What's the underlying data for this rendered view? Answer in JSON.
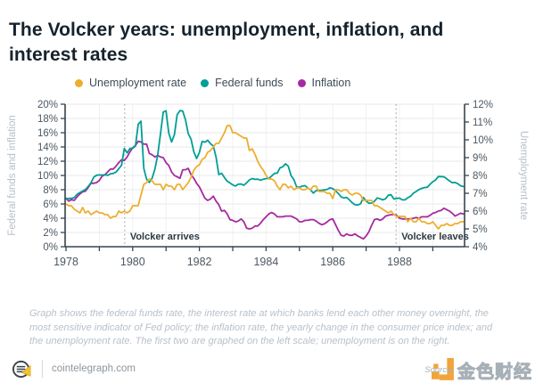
{
  "title": "The Volcker years: unemployment, inflation, and interest rates",
  "legend": [
    {
      "label": "Unemployment rate",
      "color": "#EDAE2E"
    },
    {
      "label": "Federal funds",
      "color": "#009E96"
    },
    {
      "label": "Inflation",
      "color": "#A62AA0"
    }
  ],
  "caption": "Graph shows the federal funds rate, the interest rate at which banks lend each other money overnight, the most sensitive indicator of Fed policy; the inflation rate, the yearly change in the consumer price index; and the unemployment rate. The first two are graphed on the left scale; unemployment is on the right.",
  "footer": {
    "site": "cointelegraph.com"
  },
  "watermark": {
    "source_label": "Source:",
    "brand": "金色财经"
  },
  "chart_data": {
    "type": "line",
    "x_start_year": 1978,
    "x_step_months": 1,
    "x_tick_years": [
      1978,
      1979,
      1980,
      1981,
      1982,
      1983,
      1984,
      1985,
      1986,
      1987,
      1988,
      1989
    ],
    "x_label_years": [
      1978,
      1980,
      1982,
      1984,
      1986,
      1988
    ],
    "grid": true,
    "legend_position": "top",
    "left_axis": {
      "title": "Federal funds and inflation",
      "min": 0,
      "max": 20,
      "step": 2,
      "unit": "%"
    },
    "right_axis": {
      "title": "Unemployment rate",
      "min": 4,
      "max": 12,
      "step": 1,
      "unit": "%"
    },
    "annotations": [
      {
        "x": 1979.76,
        "label": "Volcker arrives"
      },
      {
        "x": 1987.9,
        "label": "Volcker leaves"
      }
    ],
    "series": [
      {
        "name": "Inflation",
        "axis": "left",
        "color": "#A62AA0",
        "values": [
          6.8,
          6.4,
          6.6,
          6.5,
          7.0,
          7.4,
          7.7,
          7.8,
          8.3,
          8.9,
          8.9,
          9.0,
          9.3,
          9.9,
          10.1,
          10.5,
          10.9,
          10.9,
          11.3,
          11.8,
          12.2,
          12.1,
          12.6,
          13.3,
          13.9,
          14.2,
          14.8,
          14.7,
          14.4,
          14.4,
          13.1,
          12.9,
          12.6,
          12.8,
          12.6,
          12.5,
          11.8,
          11.4,
          10.5,
          10.0,
          9.8,
          9.6,
          10.8,
          10.8,
          11.0,
          10.1,
          9.6,
          8.9,
          8.4,
          7.6,
          6.8,
          6.5,
          6.7,
          7.1,
          6.4,
          5.9,
          5.0,
          5.1,
          4.6,
          3.8,
          3.7,
          3.5,
          3.6,
          3.9,
          3.5,
          2.6,
          2.5,
          2.6,
          2.9,
          2.9,
          3.3,
          3.8,
          4.2,
          4.6,
          4.8,
          4.6,
          4.2,
          4.2,
          4.2,
          4.3,
          4.3,
          4.3,
          4.1,
          3.9,
          3.5,
          3.5,
          3.7,
          3.7,
          3.8,
          3.8,
          3.6,
          3.3,
          3.1,
          3.2,
          3.5,
          3.8,
          3.9,
          3.1,
          2.3,
          1.6,
          1.5,
          1.8,
          1.6,
          1.6,
          1.8,
          1.5,
          1.3,
          1.1,
          1.5,
          2.1,
          3.0,
          3.8,
          3.9,
          3.7,
          3.9,
          4.3,
          4.4,
          4.5,
          4.5,
          4.4,
          4.0,
          3.9,
          3.9,
          3.9,
          3.9,
          4.0,
          4.1,
          4.0,
          4.2,
          4.2,
          4.2,
          4.4,
          4.7,
          4.8,
          5.0,
          5.1,
          5.4,
          5.2,
          5.0,
          4.7,
          4.3,
          4.5,
          4.7,
          4.6
        ]
      },
      {
        "name": "Federal funds",
        "axis": "left",
        "color": "#009E96",
        "values": [
          6.7,
          6.78,
          6.79,
          6.89,
          7.36,
          7.6,
          7.81,
          8.04,
          8.45,
          8.96,
          9.76,
          10.03,
          10.07,
          10.06,
          10.09,
          10.01,
          10.24,
          10.29,
          10.47,
          10.94,
          11.43,
          13.77,
          13.18,
          13.78,
          13.82,
          14.13,
          17.19,
          17.61,
          10.98,
          9.47,
          9.03,
          9.61,
          10.87,
          12.81,
          15.85,
          18.9,
          19.08,
          15.93,
          14.7,
          15.72,
          18.52,
          19.1,
          19.04,
          17.82,
          15.87,
          15.08,
          13.31,
          12.37,
          13.22,
          14.78,
          14.68,
          14.94,
          14.45,
          14.15,
          12.59,
          10.12,
          10.31,
          9.71,
          9.2,
          8.95,
          8.68,
          8.51,
          8.77,
          8.8,
          8.63,
          8.98,
          9.37,
          9.56,
          9.45,
          9.48,
          9.34,
          9.47,
          9.56,
          9.59,
          9.91,
          10.29,
          10.32,
          11.06,
          11.23,
          11.64,
          11.3,
          9.99,
          9.43,
          8.38,
          8.35,
          8.5,
          8.58,
          8.27,
          7.97,
          7.53,
          7.88,
          7.9,
          7.92,
          7.99,
          8.05,
          8.27,
          8.14,
          7.86,
          7.48,
          6.99,
          6.85,
          6.92,
          6.56,
          6.17,
          5.89,
          5.85,
          6.04,
          6.91,
          6.43,
          6.1,
          6.13,
          6.37,
          6.85,
          6.73,
          6.58,
          6.73,
          7.22,
          7.29,
          6.69,
          6.77,
          6.83,
          6.58,
          6.58,
          6.87,
          7.09,
          7.51,
          7.75,
          8.01,
          8.19,
          8.3,
          8.35,
          8.76,
          9.12,
          9.36,
          9.85,
          9.84,
          9.81,
          9.53,
          9.24,
          8.99,
          9.02,
          8.84,
          8.55,
          8.45
        ]
      },
      {
        "name": "Unemployment rate",
        "axis": "right",
        "color": "#EDAE2E",
        "values": [
          6.4,
          6.3,
          6.3,
          6.1,
          6.0,
          5.9,
          6.2,
          5.9,
          6.0,
          5.8,
          5.9,
          6.0,
          5.9,
          5.9,
          5.8,
          5.8,
          5.6,
          5.7,
          5.7,
          6.0,
          5.9,
          6.0,
          5.9,
          6.0,
          6.3,
          6.3,
          6.3,
          6.9,
          7.5,
          7.6,
          7.8,
          7.7,
          7.5,
          7.5,
          7.5,
          7.2,
          7.5,
          7.4,
          7.4,
          7.2,
          7.5,
          7.5,
          7.2,
          7.4,
          7.6,
          7.9,
          8.3,
          8.5,
          8.6,
          8.9,
          9.0,
          9.3,
          9.4,
          9.6,
          9.8,
          9.8,
          10.1,
          10.4,
          10.8,
          10.8,
          10.4,
          10.4,
          10.3,
          10.2,
          10.1,
          10.1,
          9.4,
          9.5,
          9.2,
          8.8,
          8.5,
          8.3,
          8.0,
          7.8,
          7.8,
          7.7,
          7.4,
          7.2,
          7.5,
          7.5,
          7.3,
          7.4,
          7.2,
          7.3,
          7.3,
          7.2,
          7.2,
          7.3,
          7.2,
          7.4,
          7.4,
          7.1,
          7.1,
          7.1,
          7.0,
          7.0,
          6.7,
          7.2,
          7.2,
          7.1,
          7.2,
          7.2,
          7.0,
          6.9,
          7.0,
          7.0,
          6.9,
          6.6,
          6.6,
          6.6,
          6.6,
          6.3,
          6.3,
          6.2,
          6.1,
          6.0,
          5.9,
          6.0,
          5.8,
          5.7,
          5.7,
          5.7,
          5.7,
          5.4,
          5.6,
          5.4,
          5.4,
          5.6,
          5.4,
          5.4,
          5.3,
          5.3,
          5.4,
          5.2,
          5.0,
          5.2,
          5.2,
          5.3,
          5.2,
          5.2,
          5.3,
          5.3,
          5.4,
          5.4
        ]
      }
    ]
  }
}
